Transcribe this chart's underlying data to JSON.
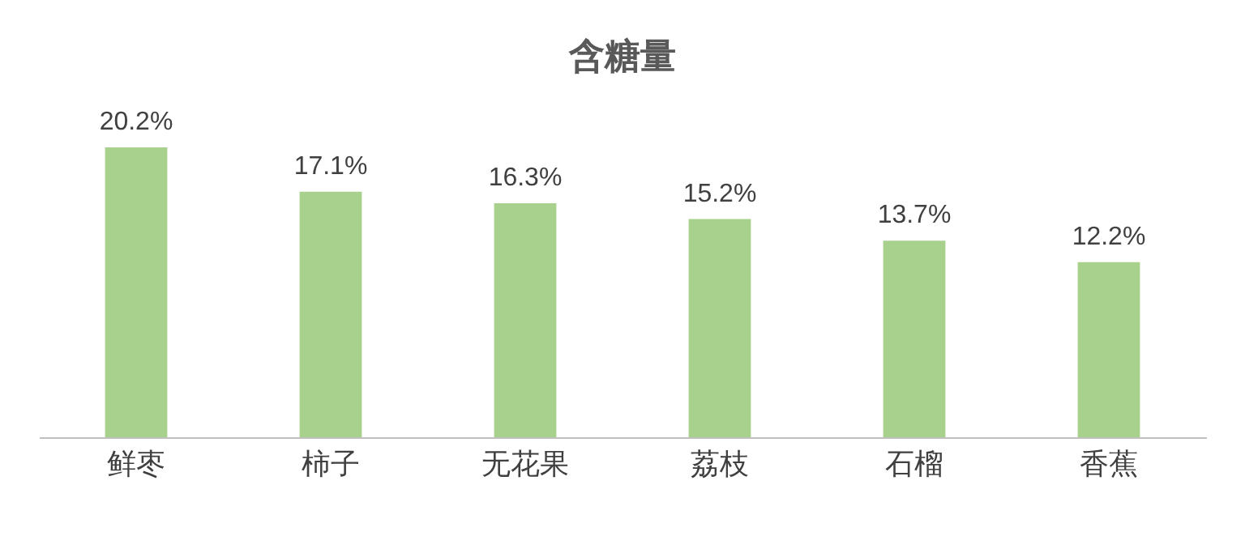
{
  "chart_data": {
    "type": "bar",
    "title": "含糖量",
    "categories": [
      "鲜枣",
      "柿子",
      "无花果",
      "荔枝",
      "石榴",
      "香蕉"
    ],
    "values": [
      20.2,
      17.1,
      16.3,
      15.2,
      13.7,
      12.2
    ],
    "value_labels": [
      "20.2%",
      "17.1%",
      "16.3%",
      "15.2%",
      "13.7%",
      "12.2%"
    ],
    "color": "#a9d18e"
  }
}
